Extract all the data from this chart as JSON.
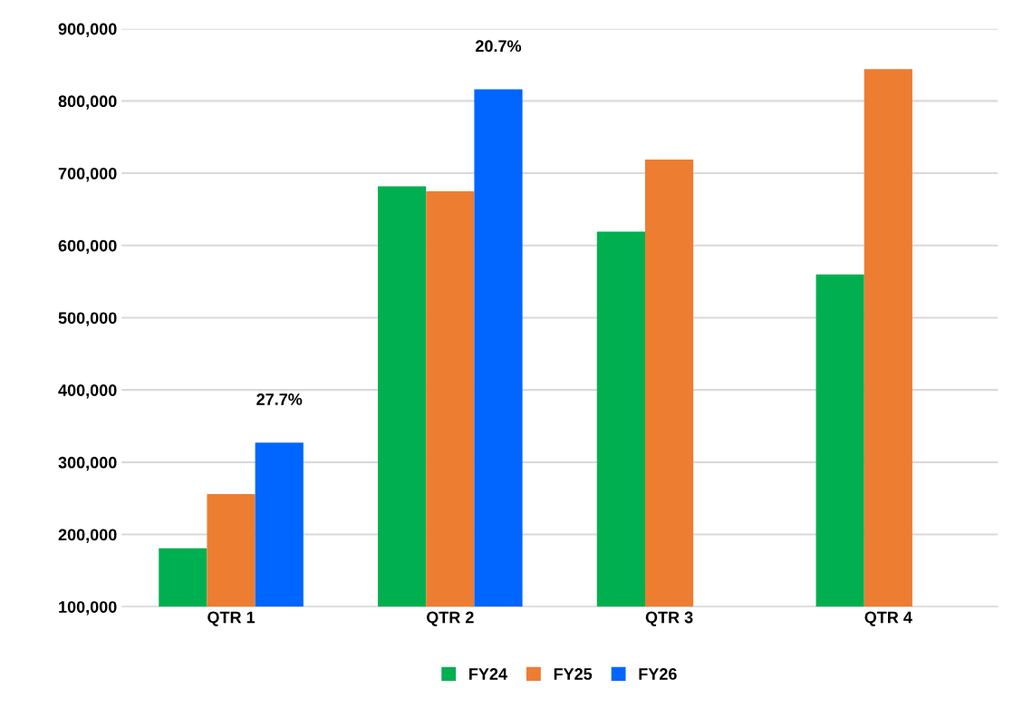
{
  "chart_data": {
    "type": "bar",
    "categories": [
      "QTR 1",
      "QTR 2",
      "QTR 3",
      "QTR 4"
    ],
    "series": [
      {
        "name": "FY24",
        "color": "#00b050",
        "values": [
          181000,
          682000,
          619000,
          560000
        ]
      },
      {
        "name": "FY25",
        "color": "#ed7d31",
        "values": [
          256000,
          675000,
          719000,
          844000
        ]
      },
      {
        "name": "FY26",
        "color": "#0066ff",
        "values": [
          327000,
          816000,
          null,
          null
        ]
      }
    ],
    "ylim": [
      100000,
      900000
    ],
    "yticks": [
      {
        "value": 100000,
        "label": "100,000"
      },
      {
        "value": 200000,
        "label": "200,000"
      },
      {
        "value": 300000,
        "label": "300,000"
      },
      {
        "value": 400000,
        "label": "400,000"
      },
      {
        "value": 500000,
        "label": "500,000"
      },
      {
        "value": 600000,
        "label": "600,000"
      },
      {
        "value": 700000,
        "label": "700,000"
      },
      {
        "value": 800000,
        "label": "800,000"
      },
      {
        "value": 900000,
        "label": "900,000"
      }
    ],
    "annotations": [
      "27.7%",
      "20.7%"
    ],
    "grid": "y",
    "legend": "bottom"
  }
}
